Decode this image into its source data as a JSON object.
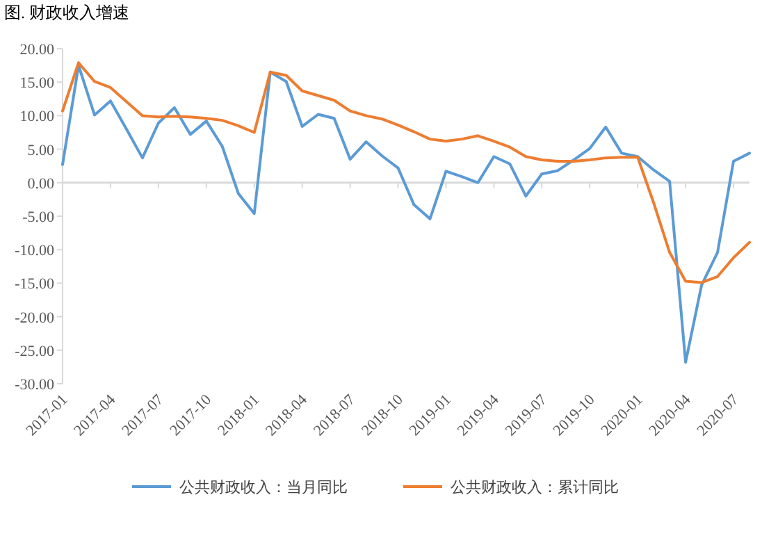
{
  "chart_data": {
    "type": "line",
    "title": "图. 财政收入增速",
    "categories": [
      "2017-01",
      null,
      null,
      "2017-04",
      null,
      null,
      "2017-07",
      null,
      null,
      "2017-10",
      null,
      null,
      "2018-01",
      null,
      null,
      "2018-04",
      null,
      null,
      "2018-07",
      null,
      null,
      "2018-10",
      null,
      null,
      "2019-01",
      null,
      null,
      "2019-04",
      null,
      null,
      "2019-07",
      null,
      null,
      "2019-10",
      null,
      null,
      "2020-01",
      null,
      null,
      "2020-04",
      null,
      null,
      "2020-07",
      null
    ],
    "ylim": [
      -30,
      20
    ],
    "yticks": [
      {
        "value": 20,
        "label": "20.00"
      },
      {
        "value": 15,
        "label": "15.00"
      },
      {
        "value": 10,
        "label": "10.00"
      },
      {
        "value": 5,
        "label": "5.00"
      },
      {
        "value": 0,
        "label": "0.00"
      },
      {
        "value": -5,
        "label": "-5.00"
      },
      {
        "value": -10,
        "label": "-10.00"
      },
      {
        "value": -15,
        "label": "-15.00"
      },
      {
        "value": -20,
        "label": "-20.00"
      },
      {
        "value": -25,
        "label": "-25.00"
      },
      {
        "value": -30,
        "label": "-30.00"
      }
    ],
    "legend": "bottom",
    "series": [
      {
        "name": "公共财政收入：当月同比",
        "color": "#5b9bd5",
        "values": [
          2.7,
          17.5,
          10.1,
          12.2,
          8.0,
          3.7,
          8.9,
          11.2,
          7.2,
          9.2,
          5.4,
          -1.6,
          -4.6,
          16.5,
          15.1,
          8.4,
          10.2,
          9.6,
          3.5,
          6.1,
          4.0,
          2.2,
          -3.3,
          -5.4,
          1.7,
          0.9,
          0.0,
          3.9,
          2.8,
          -2.0,
          1.3,
          1.8,
          3.4,
          5.1,
          8.3,
          4.4,
          3.9,
          1.9,
          0.2,
          -26.8,
          -15.3,
          -10.4,
          3.2,
          4.4
        ]
      },
      {
        "name": "公共财政收入：累计同比",
        "color": "#ed7d31",
        "values": [
          10.7,
          17.9,
          15.1,
          14.2,
          12.1,
          10.0,
          9.8,
          9.9,
          9.8,
          9.6,
          9.3,
          8.5,
          7.5,
          16.5,
          16.0,
          13.7,
          13.0,
          12.3,
          10.7,
          10.0,
          9.5,
          8.6,
          7.6,
          6.5,
          6.2,
          6.5,
          7.0,
          6.2,
          5.3,
          3.9,
          3.4,
          3.2,
          3.2,
          3.4,
          3.7,
          3.8,
          3.8,
          -3.0,
          -10.4,
          -14.7,
          -14.9,
          -14.0,
          -11.2,
          -8.9
        ]
      }
    ]
  }
}
